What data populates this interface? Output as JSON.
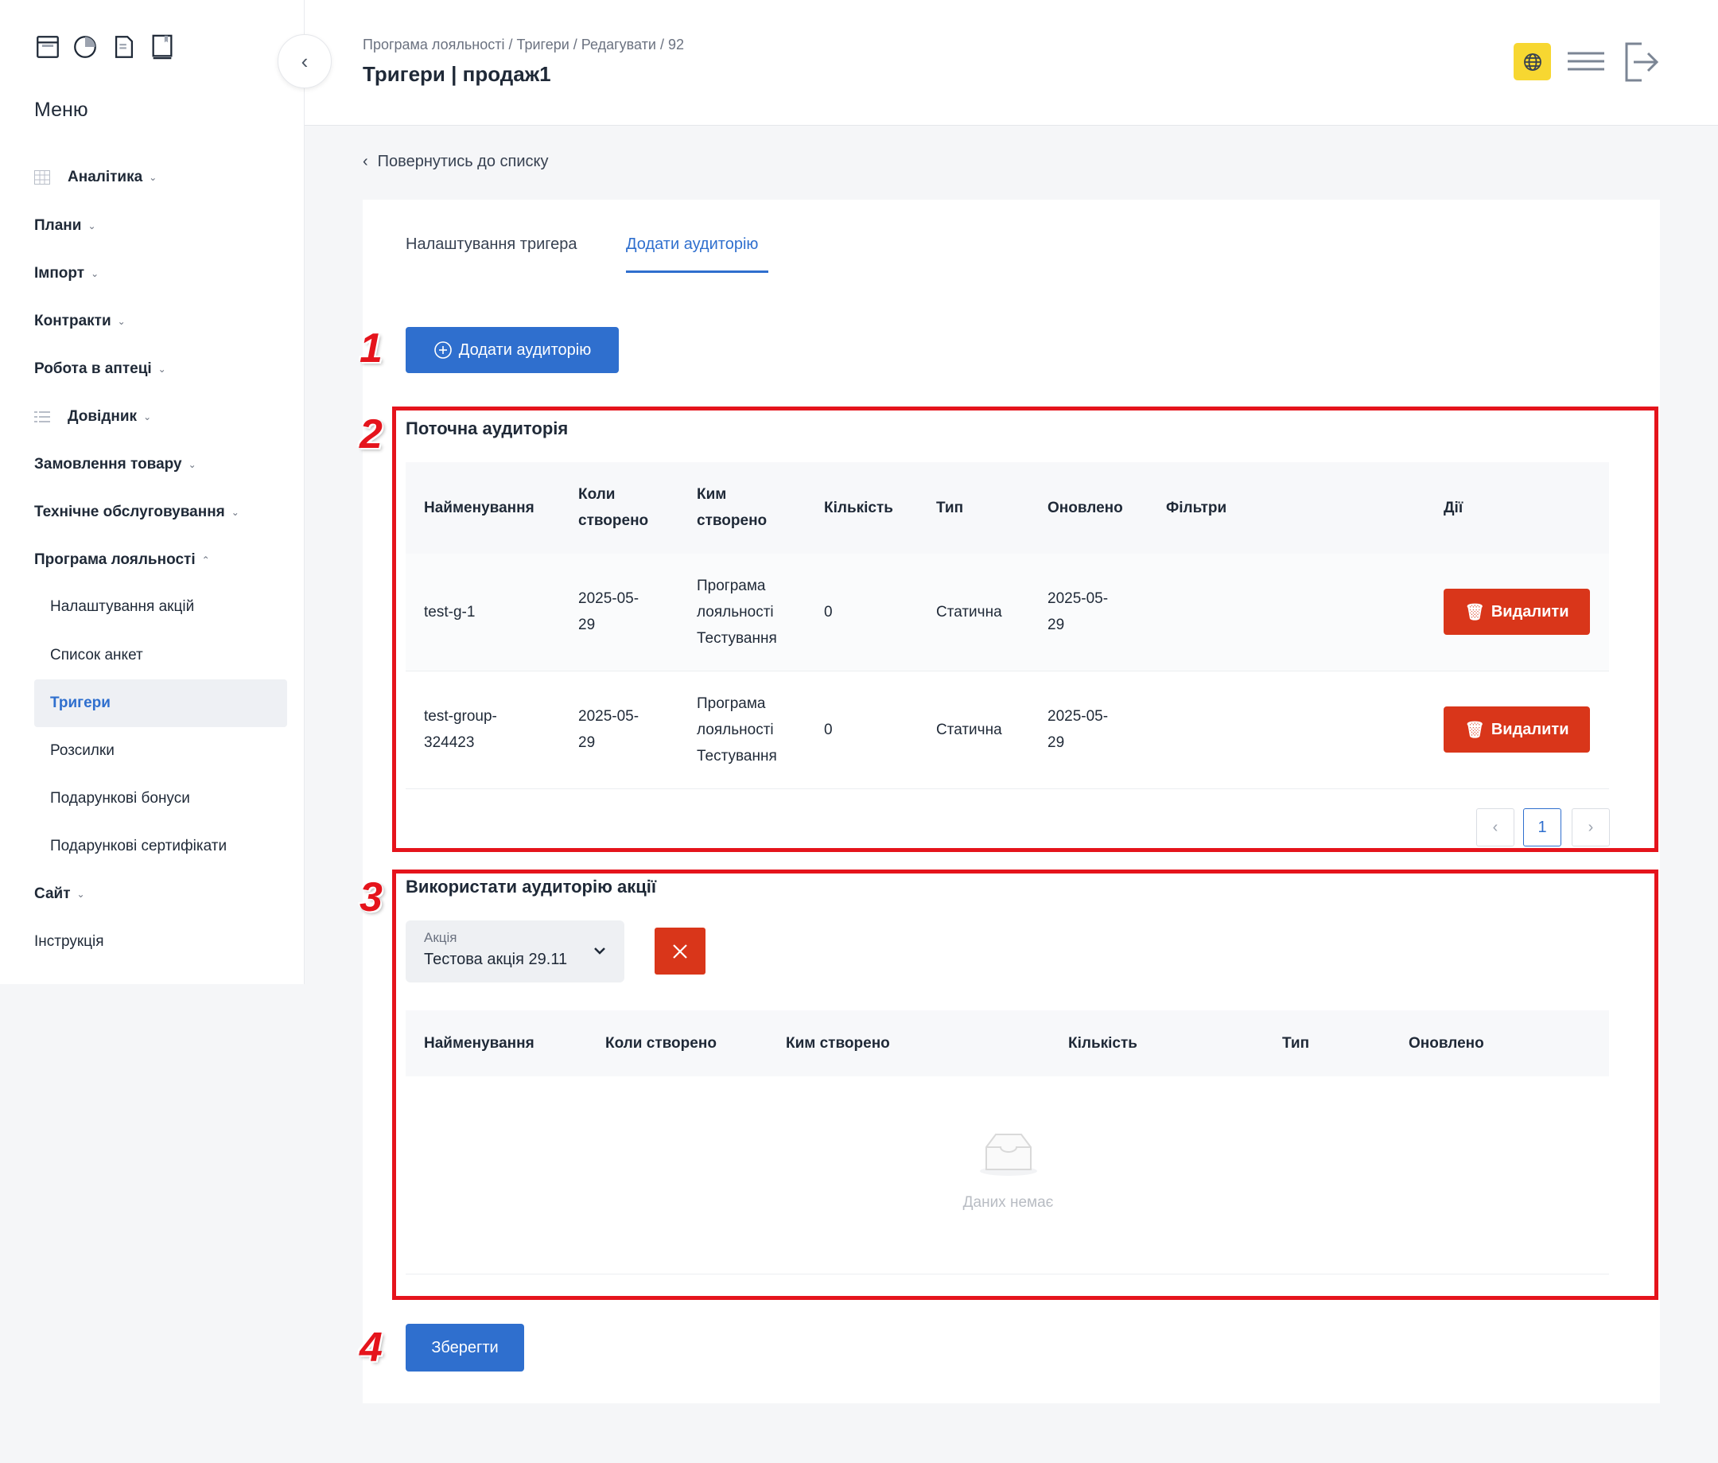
{
  "sidebar": {
    "menu_title": "Меню",
    "top_icons": [
      "archive-icon",
      "pie-chart-icon",
      "document-icon",
      "book-icon"
    ],
    "items": [
      {
        "label": "Аналітика",
        "icon": "grid-icon"
      },
      {
        "label": "Плани"
      },
      {
        "label": "Імпорт"
      },
      {
        "label": "Контракти"
      },
      {
        "label": "Робота в аптеці"
      },
      {
        "label": "Довідник",
        "icon": "list-icon"
      },
      {
        "label": "Замовлення товару"
      },
      {
        "label": "Технічне обслуговування"
      },
      {
        "label": "Програма лояльності",
        "expanded": true
      }
    ],
    "subitems": [
      "Налаштування акцій",
      "Список анкет",
      "Тригери",
      "Розсилки",
      "Подарункові бонуси",
      "Подарункові сертифікати"
    ],
    "active": "Тригери",
    "bottom_items": [
      "Сайт",
      "Інструкція"
    ]
  },
  "header": {
    "breadcrumb": "Програма лояльності / Тригери / Редагувати / 92",
    "title": "Тригери | продаж1",
    "accent": "#f7d731"
  },
  "back_link": "Повернутись до списку",
  "tabs": [
    "Налаштування тригера",
    "Додати аудиторію"
  ],
  "active_tab": "Додати аудиторію",
  "add_button": "Додати аудиторію",
  "annotations": [
    "1",
    "2",
    "3",
    "4"
  ],
  "current": {
    "title": "Поточна аудиторія",
    "columns": [
      "Найменування",
      "Коли створено",
      "Ким створено",
      "Кількість",
      "Тип",
      "Оновлено",
      "Фільтри",
      "Дії"
    ],
    "rows": [
      {
        "name": "test-g-1",
        "created": "2025-05-29",
        "by": "Програма лояльності Тестування",
        "count": "0",
        "type": "Статична",
        "updated": "2025-05-29",
        "filters": "",
        "action": "Видалити"
      },
      {
        "name": "test-group-324423",
        "created": "2025-05-29",
        "by": "Програма лояльності Тестування",
        "count": "0",
        "type": "Статична",
        "updated": "2025-05-29",
        "filters": "",
        "action": "Видалити"
      }
    ],
    "page": "1"
  },
  "use": {
    "title": "Використати аудиторію акції",
    "select_label": "Акція",
    "select_value": "Тестова акція 29.11",
    "columns": [
      "Найменування",
      "Коли створено",
      "Ким створено",
      "Кількість",
      "Тип",
      "Оновлено"
    ],
    "empty": "Даних немає"
  },
  "save": "Зберегти",
  "colors": {
    "primary": "#2f6fce",
    "danger": "#d9361a",
    "annotation": "#e5141c"
  }
}
